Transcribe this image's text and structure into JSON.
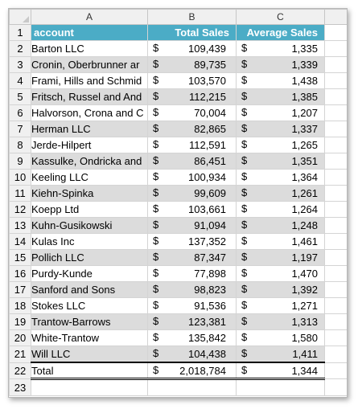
{
  "columns": [
    "A",
    "B",
    "C"
  ],
  "headers": {
    "account": "account",
    "total_sales": "Total Sales",
    "average_sales": "Average Sales"
  },
  "currency": "$",
  "rows": [
    {
      "num": "2",
      "account": "Barton LLC",
      "total": "109,439",
      "avg": "1,335"
    },
    {
      "num": "3",
      "account": "Cronin, Oberbrunner ar",
      "total": "89,735",
      "avg": "1,339"
    },
    {
      "num": "4",
      "account": "Frami, Hills and Schmid",
      "total": "103,570",
      "avg": "1,438"
    },
    {
      "num": "5",
      "account": "Fritsch, Russel and And",
      "total": "112,215",
      "avg": "1,385"
    },
    {
      "num": "6",
      "account": "Halvorson, Crona and C",
      "total": "70,004",
      "avg": "1,207"
    },
    {
      "num": "7",
      "account": "Herman LLC",
      "total": "82,865",
      "avg": "1,337"
    },
    {
      "num": "8",
      "account": "Jerde-Hilpert",
      "total": "112,591",
      "avg": "1,265"
    },
    {
      "num": "9",
      "account": "Kassulke, Ondricka and",
      "total": "86,451",
      "avg": "1,351"
    },
    {
      "num": "10",
      "account": "Keeling LLC",
      "total": "100,934",
      "avg": "1,364"
    },
    {
      "num": "11",
      "account": "Kiehn-Spinka",
      "total": "99,609",
      "avg": "1,261"
    },
    {
      "num": "12",
      "account": "Koepp Ltd",
      "total": "103,661",
      "avg": "1,264"
    },
    {
      "num": "13",
      "account": "Kuhn-Gusikowski",
      "total": "91,094",
      "avg": "1,248"
    },
    {
      "num": "14",
      "account": "Kulas Inc",
      "total": "137,352",
      "avg": "1,461"
    },
    {
      "num": "15",
      "account": "Pollich LLC",
      "total": "87,347",
      "avg": "1,197"
    },
    {
      "num": "16",
      "account": "Purdy-Kunde",
      "total": "77,898",
      "avg": "1,470"
    },
    {
      "num": "17",
      "account": "Sanford and Sons",
      "total": "98,823",
      "avg": "1,392"
    },
    {
      "num": "18",
      "account": "Stokes LLC",
      "total": "91,536",
      "avg": "1,271"
    },
    {
      "num": "19",
      "account": "Trantow-Barrows",
      "total": "123,381",
      "avg": "1,313"
    },
    {
      "num": "20",
      "account": "White-Trantow",
      "total": "135,842",
      "avg": "1,580"
    },
    {
      "num": "21",
      "account": "Will LLC",
      "total": "104,438",
      "avg": "1,411"
    }
  ],
  "total": {
    "num": "22",
    "label": "Total",
    "total": "2,018,784",
    "avg": "1,344"
  },
  "empty_row_num": "23",
  "header_row_num": "1",
  "colors": {
    "header_fill": "#4bacc6",
    "band_fill": "#dcdcdc"
  }
}
